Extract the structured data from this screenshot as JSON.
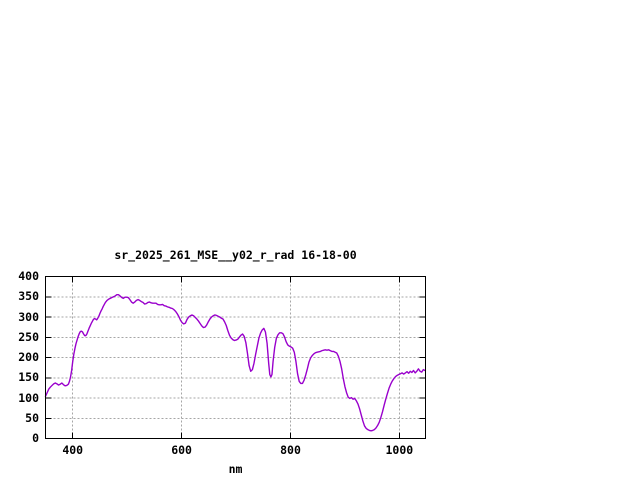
{
  "chart_data": {
    "type": "line",
    "title": "sr_2025_261_MSE__y02_r_rad 16-18-00",
    "xlabel": "nm",
    "ylabel": "",
    "xlim": [
      350,
      1048
    ],
    "ylim": [
      0,
      400
    ],
    "xticks": [
      400,
      600,
      800,
      1000
    ],
    "yticks": [
      0,
      50,
      100,
      150,
      200,
      250,
      300,
      350,
      400
    ],
    "grid": true,
    "legend_position": "none",
    "line_color": "#9900CC",
    "grid_color": "#A6A6A6",
    "axis_color": "#000000",
    "text_color": "#000000",
    "background_color": "#FFFFFF",
    "points": [
      [
        350,
        104
      ],
      [
        353,
        113
      ],
      [
        356,
        122
      ],
      [
        359,
        127
      ],
      [
        362,
        131
      ],
      [
        365,
        135
      ],
      [
        368,
        137
      ],
      [
        371,
        135
      ],
      [
        374,
        132
      ],
      [
        377,
        134
      ],
      [
        380,
        137
      ],
      [
        383,
        133
      ],
      [
        386,
        130
      ],
      [
        389,
        131
      ],
      [
        392,
        134
      ],
      [
        394,
        141
      ],
      [
        396,
        152
      ],
      [
        398,
        168
      ],
      [
        400,
        190
      ],
      [
        402,
        208
      ],
      [
        404,
        222
      ],
      [
        406,
        234
      ],
      [
        408,
        243
      ],
      [
        410,
        252
      ],
      [
        412,
        259
      ],
      [
        414,
        264
      ],
      [
        416,
        265
      ],
      [
        418,
        263
      ],
      [
        420,
        258
      ],
      [
        422,
        254
      ],
      [
        424,
        254
      ],
      [
        426,
        258
      ],
      [
        428,
        265
      ],
      [
        430,
        272
      ],
      [
        432,
        278
      ],
      [
        434,
        284
      ],
      [
        436,
        289
      ],
      [
        438,
        294
      ],
      [
        440,
        296
      ],
      [
        442,
        295
      ],
      [
        444,
        293
      ],
      [
        446,
        297
      ],
      [
        448,
        302
      ],
      [
        450,
        309
      ],
      [
        452,
        315
      ],
      [
        454,
        320
      ],
      [
        456,
        326
      ],
      [
        458,
        331
      ],
      [
        460,
        336
      ],
      [
        463,
        341
      ],
      [
        466,
        344
      ],
      [
        469,
        346
      ],
      [
        472,
        348
      ],
      [
        475,
        350
      ],
      [
        478,
        352
      ],
      [
        481,
        355
      ],
      [
        484,
        355
      ],
      [
        487,
        352
      ],
      [
        490,
        348
      ],
      [
        493,
        346
      ],
      [
        496,
        349
      ],
      [
        499,
        349
      ],
      [
        502,
        348
      ],
      [
        505,
        343
      ],
      [
        508,
        337
      ],
      [
        511,
        334
      ],
      [
        514,
        337
      ],
      [
        517,
        341
      ],
      [
        520,
        343
      ],
      [
        523,
        341
      ],
      [
        526,
        338
      ],
      [
        529,
        336
      ],
      [
        532,
        332
      ],
      [
        535,
        333
      ],
      [
        538,
        336
      ],
      [
        541,
        337
      ],
      [
        544,
        335
      ],
      [
        547,
        334
      ],
      [
        550,
        334
      ],
      [
        553,
        334
      ],
      [
        556,
        331
      ],
      [
        559,
        330
      ],
      [
        562,
        330
      ],
      [
        565,
        331
      ],
      [
        568,
        328
      ],
      [
        571,
        327
      ],
      [
        574,
        325
      ],
      [
        577,
        324
      ],
      [
        580,
        322
      ],
      [
        583,
        321
      ],
      [
        586,
        318
      ],
      [
        589,
        314
      ],
      [
        592,
        308
      ],
      [
        595,
        301
      ],
      [
        598,
        292
      ],
      [
        601,
        286
      ],
      [
        604,
        283
      ],
      [
        607,
        285
      ],
      [
        610,
        294
      ],
      [
        613,
        300
      ],
      [
        616,
        303
      ],
      [
        619,
        305
      ],
      [
        622,
        303
      ],
      [
        625,
        299
      ],
      [
        628,
        295
      ],
      [
        631,
        290
      ],
      [
        634,
        284
      ],
      [
        637,
        278
      ],
      [
        640,
        274
      ],
      [
        643,
        275
      ],
      [
        646,
        280
      ],
      [
        649,
        288
      ],
      [
        652,
        295
      ],
      [
        655,
        300
      ],
      [
        658,
        303
      ],
      [
        661,
        305
      ],
      [
        664,
        304
      ],
      [
        667,
        302
      ],
      [
        670,
        300
      ],
      [
        673,
        297
      ],
      [
        676,
        295
      ],
      [
        679,
        288
      ],
      [
        682,
        279
      ],
      [
        685,
        266
      ],
      [
        688,
        255
      ],
      [
        691,
        248
      ],
      [
        694,
        244
      ],
      [
        697,
        242
      ],
      [
        700,
        243
      ],
      [
        703,
        245
      ],
      [
        706,
        250
      ],
      [
        709,
        255
      ],
      [
        712,
        258
      ],
      [
        715,
        252
      ],
      [
        718,
        237
      ],
      [
        721,
        210
      ],
      [
        724,
        180
      ],
      [
        727,
        166
      ],
      [
        730,
        170
      ],
      [
        733,
        186
      ],
      [
        736,
        208
      ],
      [
        739,
        228
      ],
      [
        742,
        248
      ],
      [
        745,
        260
      ],
      [
        748,
        268
      ],
      [
        751,
        272
      ],
      [
        754,
        263
      ],
      [
        757,
        235
      ],
      [
        760,
        185
      ],
      [
        762,
        158
      ],
      [
        764,
        152
      ],
      [
        766,
        158
      ],
      [
        768,
        190
      ],
      [
        771,
        225
      ],
      [
        774,
        247
      ],
      [
        777,
        256
      ],
      [
        780,
        261
      ],
      [
        783,
        261
      ],
      [
        786,
        259
      ],
      [
        789,
        251
      ],
      [
        792,
        239
      ],
      [
        795,
        231
      ],
      [
        798,
        228
      ],
      [
        801,
        226
      ],
      [
        804,
        223
      ],
      [
        807,
        213
      ],
      [
        810,
        190
      ],
      [
        813,
        160
      ],
      [
        816,
        141
      ],
      [
        819,
        136
      ],
      [
        822,
        136
      ],
      [
        825,
        144
      ],
      [
        828,
        157
      ],
      [
        831,
        172
      ],
      [
        834,
        189
      ],
      [
        837,
        199
      ],
      [
        840,
        205
      ],
      [
        843,
        209
      ],
      [
        846,
        212
      ],
      [
        849,
        213
      ],
      [
        852,
        214
      ],
      [
        855,
        215
      ],
      [
        858,
        217
      ],
      [
        861,
        218
      ],
      [
        864,
        219
      ],
      [
        867,
        218
      ],
      [
        870,
        219
      ],
      [
        873,
        217
      ],
      [
        876,
        215
      ],
      [
        879,
        215
      ],
      [
        882,
        213
      ],
      [
        885,
        211
      ],
      [
        888,
        203
      ],
      [
        891,
        190
      ],
      [
        894,
        172
      ],
      [
        897,
        148
      ],
      [
        900,
        128
      ],
      [
        903,
        113
      ],
      [
        906,
        102
      ],
      [
        909,
        99
      ],
      [
        912,
        101
      ],
      [
        915,
        97
      ],
      [
        918,
        99
      ],
      [
        921,
        93
      ],
      [
        924,
        85
      ],
      [
        927,
        73
      ],
      [
        930,
        58
      ],
      [
        933,
        43
      ],
      [
        936,
        31
      ],
      [
        939,
        25
      ],
      [
        942,
        22
      ],
      [
        945,
        20
      ],
      [
        948,
        19
      ],
      [
        951,
        20
      ],
      [
        954,
        22
      ],
      [
        957,
        26
      ],
      [
        960,
        32
      ],
      [
        963,
        40
      ],
      [
        966,
        52
      ],
      [
        969,
        66
      ],
      [
        972,
        82
      ],
      [
        975,
        97
      ],
      [
        978,
        111
      ],
      [
        981,
        124
      ],
      [
        984,
        134
      ],
      [
        987,
        142
      ],
      [
        990,
        148
      ],
      [
        993,
        153
      ],
      [
        996,
        156
      ],
      [
        999,
        158
      ],
      [
        1002,
        160
      ],
      [
        1005,
        162
      ],
      [
        1008,
        159
      ],
      [
        1011,
        162
      ],
      [
        1014,
        165
      ],
      [
        1017,
        161
      ],
      [
        1020,
        166
      ],
      [
        1023,
        163
      ],
      [
        1026,
        168
      ],
      [
        1029,
        162
      ],
      [
        1032,
        166
      ],
      [
        1035,
        172
      ],
      [
        1038,
        166
      ],
      [
        1041,
        164
      ],
      [
        1044,
        170
      ],
      [
        1047,
        168
      ]
    ]
  }
}
